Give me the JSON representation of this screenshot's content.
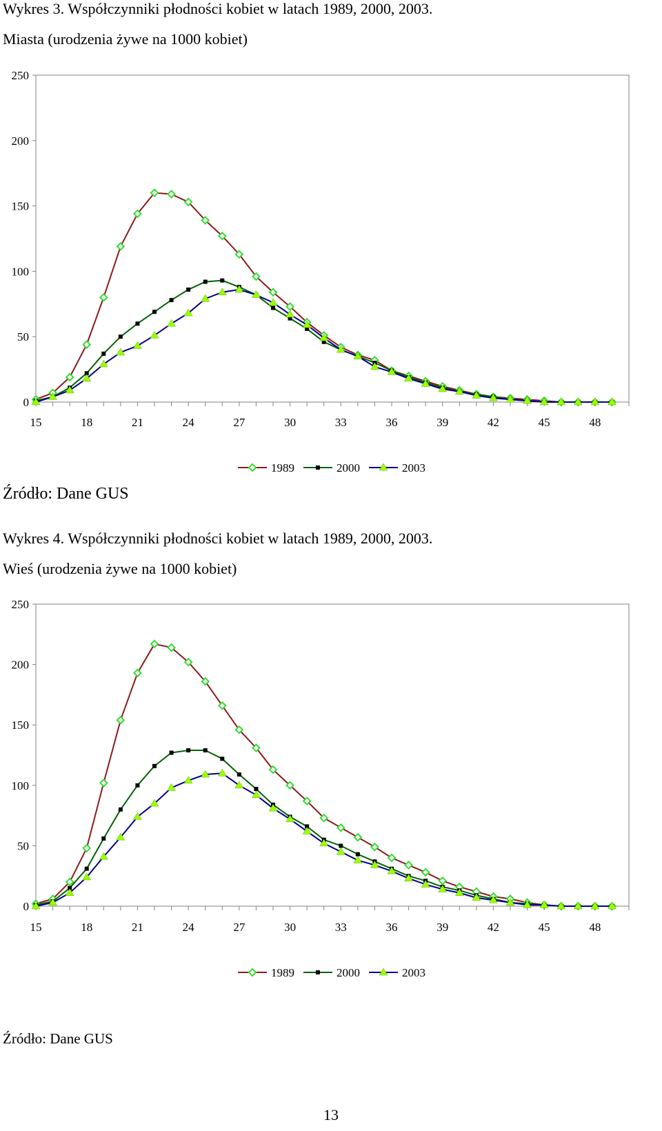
{
  "sections": [
    {
      "heading_line1": "Wykres 3. Współczynniki płodności kobiet w latach 1989, 2000, 2003.",
      "heading_line2": "Miasta (urodzenia żywe na 1000 kobiet)",
      "source": "Źródło: Dane GUS"
    },
    {
      "heading_line1": "Wykres 4. Współczynniki płodności kobiet w latach 1989, 2000, 2003.",
      "heading_line2": "Wieś (urodzenia żywe na 1000 kobiet)",
      "source": "Źródło: Dane GUS"
    }
  ],
  "page_number": "13",
  "colors": {
    "series_1989": "#8b1a1a",
    "series_2000": "#006400",
    "series_2003": "#00008b",
    "marker_1989": "#33dd33",
    "marker_2000": "#000000",
    "marker_2003": "#99ff00",
    "grid": "#c0c0c0"
  },
  "chart_data": [
    {
      "type": "line",
      "title": "",
      "xlabel": "",
      "ylabel": "",
      "x": [
        15,
        16,
        17,
        18,
        19,
        20,
        21,
        22,
        23,
        24,
        25,
        26,
        27,
        28,
        29,
        30,
        31,
        32,
        33,
        34,
        35,
        36,
        37,
        38,
        39,
        40,
        41,
        42,
        43,
        44,
        45,
        46,
        47,
        48,
        49
      ],
      "xticks": [
        "15",
        "18",
        "21",
        "24",
        "27",
        "30",
        "33",
        "36",
        "39",
        "42",
        "45",
        "48"
      ],
      "xtick_values": [
        15,
        18,
        21,
        24,
        27,
        30,
        33,
        36,
        39,
        42,
        45,
        48
      ],
      "yticks": [
        "0",
        "50",
        "100",
        "150",
        "200",
        "250"
      ],
      "ylim": [
        0,
        250
      ],
      "grid": false,
      "legend_position": "bottom-center",
      "series": [
        {
          "name": "1989",
          "marker": "diamond",
          "values": [
            2,
            7,
            19,
            44,
            80,
            119,
            144,
            160,
            159,
            153,
            139,
            127,
            113,
            96,
            84,
            73,
            61,
            51,
            42,
            36,
            32,
            24,
            20,
            16,
            12,
            9,
            6,
            4,
            3,
            2,
            1,
            0,
            0,
            0,
            0
          ]
        },
        {
          "name": "2000",
          "marker": "square",
          "values": [
            1,
            4,
            11,
            22,
            37,
            50,
            60,
            69,
            78,
            86,
            92,
            93,
            88,
            82,
            72,
            64,
            56,
            46,
            40,
            35,
            30,
            24,
            19,
            15,
            11,
            8,
            6,
            4,
            2,
            1,
            0,
            0,
            0,
            0,
            0
          ]
        },
        {
          "name": "2003",
          "marker": "triangle",
          "values": [
            0,
            4,
            9,
            18,
            29,
            38,
            43,
            51,
            60,
            68,
            79,
            84,
            86,
            82,
            76,
            67,
            59,
            49,
            40,
            35,
            27,
            23,
            18,
            14,
            10,
            8,
            5,
            3,
            2,
            1,
            0,
            0,
            0,
            0,
            0
          ]
        }
      ]
    },
    {
      "type": "line",
      "title": "",
      "xlabel": "",
      "ylabel": "",
      "x": [
        15,
        16,
        17,
        18,
        19,
        20,
        21,
        22,
        23,
        24,
        25,
        26,
        27,
        28,
        29,
        30,
        31,
        32,
        33,
        34,
        35,
        36,
        37,
        38,
        39,
        40,
        41,
        42,
        43,
        44,
        45,
        46,
        47,
        48,
        49
      ],
      "xticks": [
        "15",
        "18",
        "21",
        "24",
        "27",
        "30",
        "33",
        "36",
        "39",
        "42",
        "45",
        "48"
      ],
      "xtick_values": [
        15,
        18,
        21,
        24,
        27,
        30,
        33,
        36,
        39,
        42,
        45,
        48
      ],
      "yticks": [
        "0",
        "50",
        "100",
        "150",
        "200",
        "250"
      ],
      "ylim": [
        0,
        250
      ],
      "grid": false,
      "legend_position": "bottom-center",
      "series": [
        {
          "name": "1989",
          "marker": "diamond",
          "values": [
            2,
            6,
            20,
            48,
            102,
            154,
            193,
            217,
            214,
            202,
            186,
            166,
            146,
            131,
            113,
            100,
            87,
            73,
            65,
            57,
            49,
            40,
            34,
            28,
            21,
            16,
            12,
            8,
            6,
            3,
            1,
            0,
            0,
            0,
            0
          ]
        },
        {
          "name": "2000",
          "marker": "square",
          "values": [
            1,
            4,
            15,
            31,
            56,
            80,
            100,
            116,
            127,
            129,
            129,
            122,
            109,
            97,
            84,
            74,
            66,
            55,
            50,
            43,
            37,
            31,
            25,
            21,
            16,
            13,
            9,
            6,
            3,
            2,
            1,
            0,
            0,
            0,
            0
          ]
        },
        {
          "name": "2003",
          "marker": "triangle",
          "values": [
            0,
            3,
            11,
            24,
            41,
            57,
            74,
            85,
            98,
            104,
            109,
            110,
            100,
            92,
            81,
            72,
            62,
            52,
            45,
            38,
            34,
            29,
            23,
            18,
            14,
            11,
            7,
            5,
            3,
            1,
            1,
            0,
            0,
            0,
            0
          ]
        }
      ]
    }
  ]
}
